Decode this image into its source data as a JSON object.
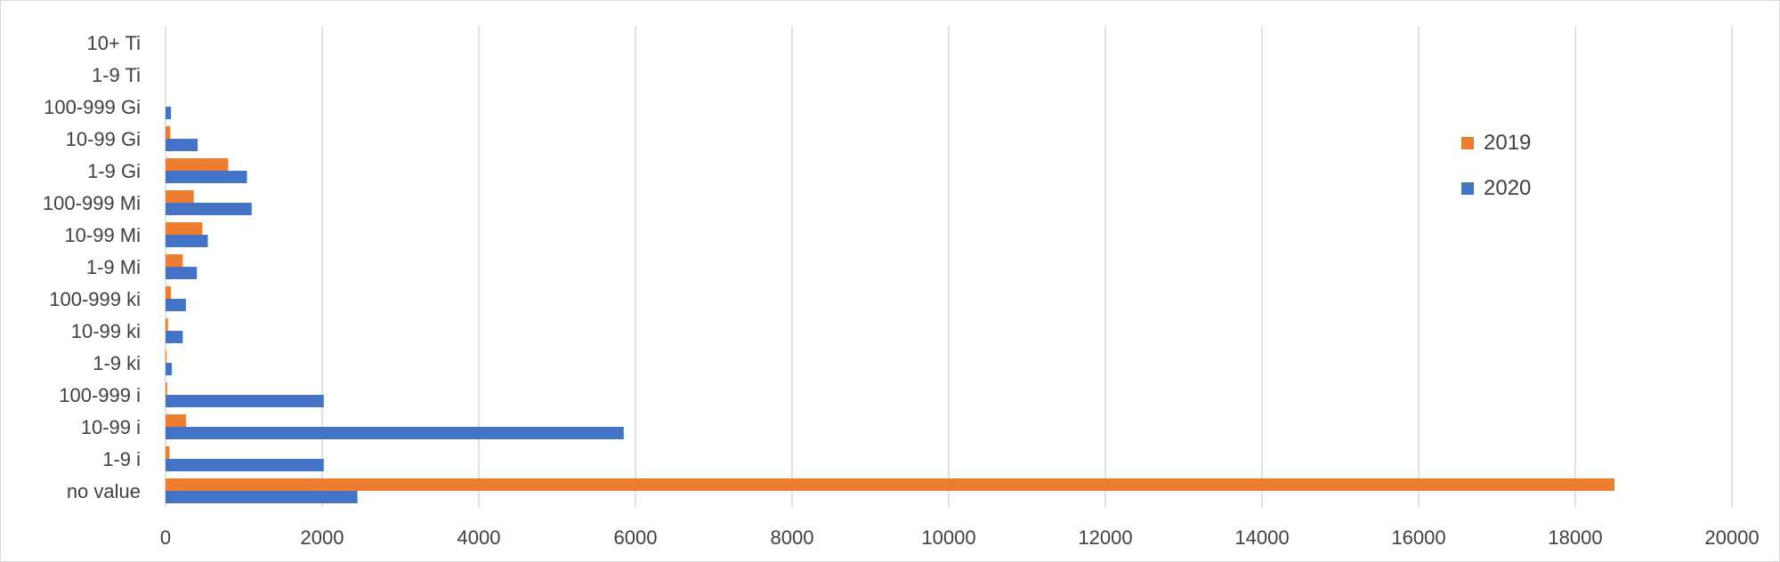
{
  "chart_data": {
    "type": "bar",
    "orientation": "horizontal",
    "title": "",
    "xlabel": "",
    "ylabel": "",
    "categories": [
      "no value",
      "1-9 i",
      "10-99 i",
      "100-999 i",
      "1-9 ki",
      "10-99 ki",
      "100-999 ki",
      "1-9 Mi",
      "10-99 Mi",
      "100-999 Mi",
      "1-9 Gi",
      "10-99 Gi",
      "100-999 Gi",
      "1-9 Ti",
      "10+ Ti"
    ],
    "series": [
      {
        "name": "2019",
        "color": "#ED7D31",
        "values": [
          18500,
          50,
          260,
          20,
          10,
          30,
          70,
          220,
          470,
          360,
          800,
          60,
          0,
          0,
          0
        ]
      },
      {
        "name": "2020",
        "color": "#4472C4",
        "values": [
          2450,
          2020,
          5850,
          2020,
          80,
          220,
          260,
          400,
          540,
          1100,
          1040,
          410,
          70,
          0,
          0
        ]
      }
    ],
    "xlim": [
      0,
      20000
    ],
    "xticks": [
      "0",
      "2000",
      "4000",
      "6000",
      "8000",
      "10000",
      "12000",
      "14000",
      "16000",
      "18000",
      "20000"
    ],
    "grid": "vertical",
    "legend": "right"
  }
}
